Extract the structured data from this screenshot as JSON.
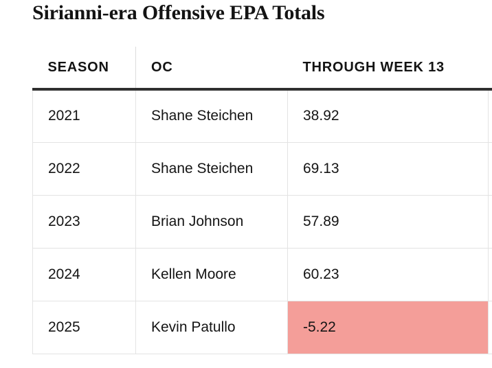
{
  "title": "Sirianni-era Offensive EPA Totals",
  "table": {
    "columns": [
      "SEASON",
      "OC",
      "THROUGH WEEK 13"
    ],
    "rows": [
      {
        "season": "2021",
        "oc": "Shane Steichen",
        "value": "38.92",
        "highlight": false
      },
      {
        "season": "2022",
        "oc": "Shane Steichen",
        "value": "69.13",
        "highlight": false
      },
      {
        "season": "2023",
        "oc": "Brian Johnson",
        "value": "57.89",
        "highlight": false
      },
      {
        "season": "2024",
        "oc": "Kellen Moore",
        "value": "60.23",
        "highlight": false
      },
      {
        "season": "2025",
        "oc": "Kevin Patullo",
        "value": "-5.22",
        "highlight": true
      }
    ]
  },
  "colors": {
    "highlight_bg": "#f49e99",
    "header_rule": "#2f2f2f",
    "grid_line": "#e3e3e3",
    "text": "#141414"
  },
  "chart_data": {
    "type": "table",
    "title": "Sirianni-era Offensive EPA Totals",
    "columns": [
      "SEASON",
      "OC",
      "THROUGH WEEK 13"
    ],
    "rows": [
      [
        "2021",
        "Shane Steichen",
        38.92
      ],
      [
        "2022",
        "Shane Steichen",
        69.13
      ],
      [
        "2023",
        "Brian Johnson",
        57.89
      ],
      [
        "2024",
        "Kellen Moore",
        60.23
      ],
      [
        "2025",
        "Kevin Patullo",
        -5.22
      ]
    ],
    "highlighted_cell": {
      "row": "2025",
      "column": "THROUGH WEEK 13",
      "color": "#f49e99"
    },
    "notes": "negative value highlighted in salmon; 4th column partially cut off at right edge"
  }
}
